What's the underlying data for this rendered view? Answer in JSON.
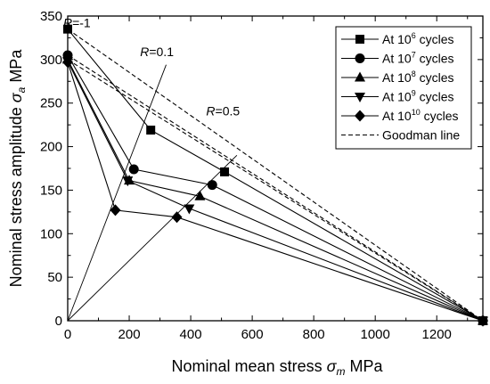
{
  "chart_data": {
    "type": "line",
    "xlabel_main": "Nominal mean stress ",
    "xlabel_sym": "σ",
    "xlabel_sub": "m",
    "xlabel_unit": " MPa",
    "ylabel_main": "Nominal stress amplitude ",
    "ylabel_sym": "σ",
    "ylabel_sub": "a",
    "ylabel_unit": " MPa",
    "xlim": [
      0,
      1350
    ],
    "ylim": [
      0,
      350
    ],
    "xticks": [
      0,
      200,
      400,
      600,
      800,
      1000,
      1200
    ],
    "yticks": [
      0,
      50,
      100,
      150,
      200,
      250,
      300,
      350
    ],
    "legend_position": "top-right",
    "series": [
      {
        "name_prefix": "At 10",
        "name_exp": "6",
        "name_suffix": " cycles",
        "marker": "square",
        "x": [
          0,
          270,
          510,
          1350
        ],
        "y": [
          335,
          219,
          171,
          0
        ]
      },
      {
        "name_prefix": "At 10",
        "name_exp": "7",
        "name_suffix": " cycles",
        "marker": "circle",
        "x": [
          0,
          215,
          470,
          1350
        ],
        "y": [
          305,
          174,
          156,
          0
        ]
      },
      {
        "name_prefix": "At 10",
        "name_exp": "8",
        "name_suffix": " cycles",
        "marker": "triangle-up",
        "x": [
          0,
          200,
          430,
          1350
        ],
        "y": [
          300,
          161,
          143,
          0
        ]
      },
      {
        "name_prefix": "At 10",
        "name_exp": "9",
        "name_suffix": " cycles",
        "marker": "triangle-down",
        "x": [
          0,
          195,
          395,
          1350
        ],
        "y": [
          298,
          161,
          129,
          0
        ]
      },
      {
        "name_prefix": "At 10",
        "name_exp": "10",
        "name_suffix": " cycles",
        "marker": "diamond",
        "x": [
          0,
          155,
          355,
          1350
        ],
        "y": [
          297,
          127,
          119,
          0
        ]
      }
    ],
    "goodman": {
      "name": "Goodman line",
      "lines": [
        {
          "x": [
            0,
            1350
          ],
          "y": [
            335,
            0
          ]
        },
        {
          "x": [
            0,
            1350
          ],
          "y": [
            305,
            0
          ]
        },
        {
          "x": [
            0,
            1350
          ],
          "y": [
            300,
            0
          ]
        }
      ]
    },
    "r_lines": [
      {
        "label_italic": "R",
        "label_rest": "=-1",
        "x": [
          0,
          0
        ],
        "y": [
          0,
          345
        ],
        "label_at": [
          30,
          337
        ]
      },
      {
        "label_italic": "R",
        "label_rest": "=0.1",
        "x": [
          0,
          320
        ],
        "y": [
          0,
          294
        ],
        "label_at": [
          290,
          304
        ]
      },
      {
        "label_italic": "R",
        "label_rest": "=0.5",
        "x": [
          0,
          550
        ],
        "y": [
          0,
          190
        ],
        "label_at": [
          505,
          236
        ]
      }
    ]
  }
}
